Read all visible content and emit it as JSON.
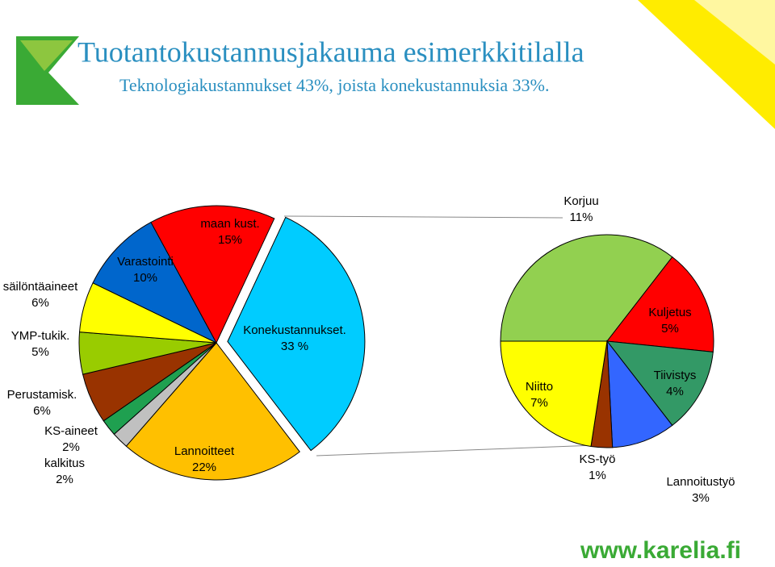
{
  "chart_data": [
    {
      "type": "pie",
      "title": "Tuotantokustannusjakauma esimerkkitilalla",
      "subtitle": "Teknologiakustannukset 43%, joista konekustannuksia 33%.",
      "categories": [
        "Konekustannukset.",
        "Lannoitteet",
        "kalkitus",
        "KS-aineet",
        "Perustamisk.",
        "YMP-tukik.",
        "säilöntäaineet",
        "Varastointi",
        "maan kust."
      ],
      "values": [
        33,
        22,
        2,
        2,
        6,
        5,
        6,
        10,
        15
      ],
      "value_labels": [
        "33 %",
        "22%",
        "2%",
        "2%",
        "6%",
        "5%",
        "6%",
        "10%",
        "15%"
      ],
      "colors": [
        "#00ccff",
        "#ffc000",
        "#c0c0c0",
        "#1fa050",
        "#993300",
        "#99cc00",
        "#ffff00",
        "#0066cc",
        "#ff0000"
      ]
    },
    {
      "type": "pie",
      "categories": [
        "Korjuu",
        "Kuljetus",
        "Tiivistys",
        "Lannoitustyö",
        "KS-työ",
        "Niitto"
      ],
      "values": [
        11,
        5,
        4,
        3,
        1,
        7
      ],
      "value_labels": [
        "11%",
        "5%",
        "4%",
        "3%",
        "1%",
        "7%"
      ],
      "colors": [
        "#92d050",
        "#ff0000",
        "#339966",
        "#3366ff",
        "#993300",
        "#ffff00"
      ]
    }
  ],
  "footer": "www.karelia.fi"
}
